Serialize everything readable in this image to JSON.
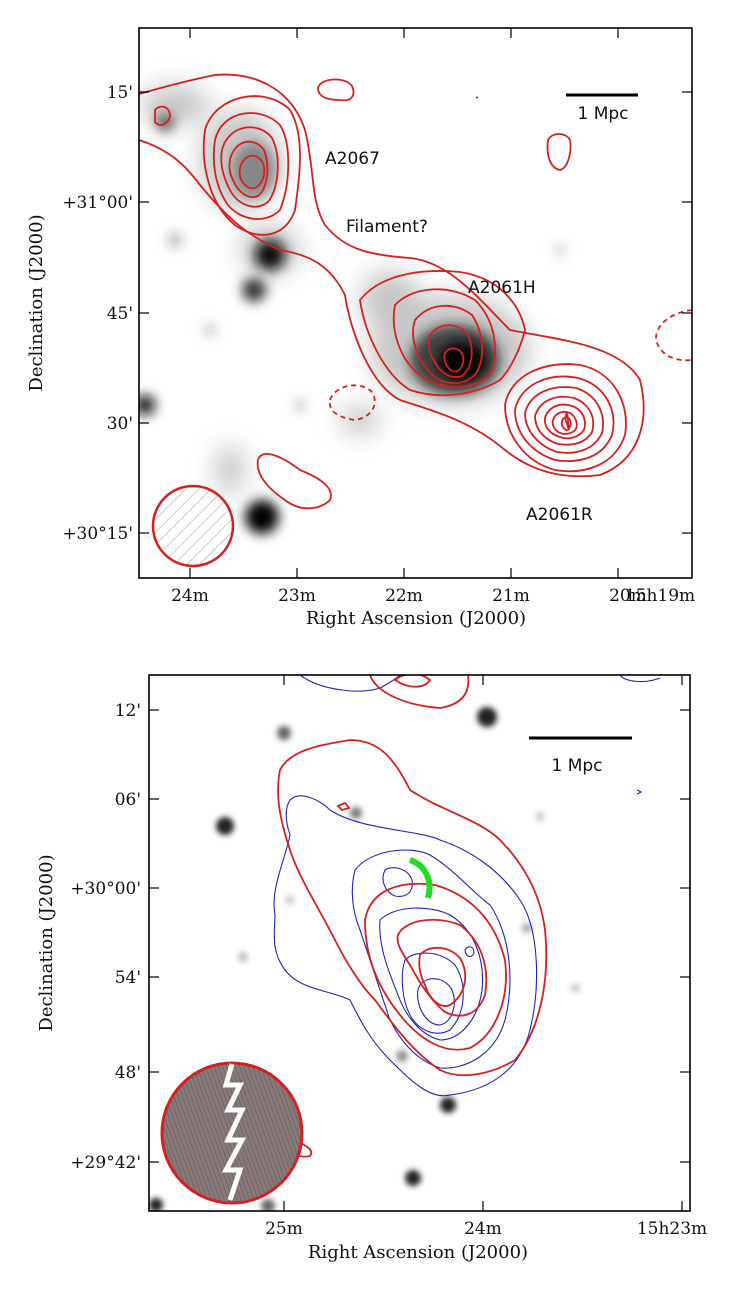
{
  "panel_top": {
    "x_ticks": [
      "24m",
      "23m",
      "22m",
      "21m",
      "20m",
      "15h19m"
    ],
    "y_ticks": [
      "15'",
      "+31°00'",
      "45'",
      "30'",
      "+30°15'"
    ],
    "xlabel": "Right Ascension (J2000)",
    "ylabel": "Declination (J2000)",
    "scale_bar": "1 Mpc",
    "labels": {
      "a2067": "A2067",
      "filament": "Filament?",
      "a2061h": "A2061H",
      "a2061r": "A2061R"
    },
    "colors": {
      "contour": "#d62020"
    }
  },
  "panel_bottom": {
    "x_ticks": [
      "25m",
      "24m",
      "15h23m"
    ],
    "y_ticks": [
      "12'",
      "06'",
      "+30°00'",
      "54'",
      "48'",
      "+29°42'"
    ],
    "xlabel": "Right Ascension (J2000)",
    "ylabel": "Declination (J2000)",
    "scale_bar": "1 Mpc",
    "colors": {
      "contour_radio": "#d62020",
      "contour_xray": "#2222bb",
      "relic_arc": "#22dd22"
    }
  }
}
